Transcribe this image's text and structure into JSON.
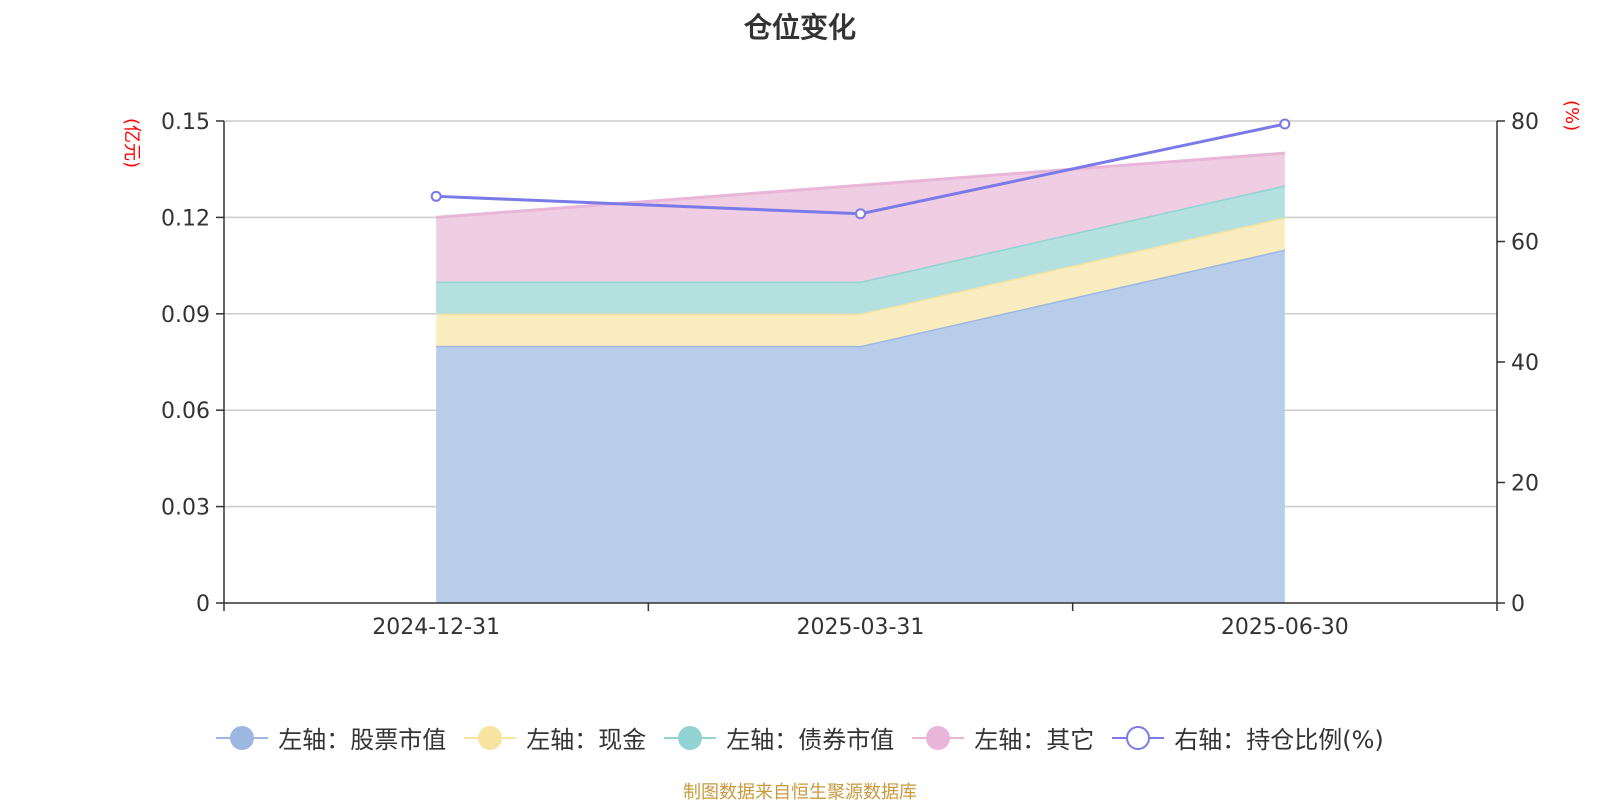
{
  "title": "仓位变化",
  "left_unit": "(亿元)",
  "right_unit": "(%)",
  "source": "制图数据来自恒生聚源数据库",
  "legend": [
    {
      "label": "左轴：股票市值",
      "color": "#9db8e0",
      "hollow": false
    },
    {
      "label": "左轴：现金",
      "color": "#f6e4a0",
      "hollow": false
    },
    {
      "label": "左轴：债券市值",
      "color": "#92d3d3",
      "hollow": false
    },
    {
      "label": "左轴：其它",
      "color": "#e9b5d8",
      "hollow": false
    },
    {
      "label": "右轴：持仓比例(%)",
      "color": "#7a7ae8",
      "hollow": true
    }
  ],
  "chart_data": {
    "type": "area",
    "stacked": true,
    "categories": [
      "2024-12-31",
      "2025-03-31",
      "2025-06-30"
    ],
    "left_axis": {
      "min": 0,
      "max": 0.15,
      "ticks": [
        "0",
        "0.03",
        "0.06",
        "0.09",
        "0.12",
        "0.15"
      ]
    },
    "right_axis": {
      "min": 0,
      "max": 80,
      "ticks": [
        "0",
        "20",
        "40",
        "60",
        "80"
      ]
    },
    "grid": true,
    "legend_position": "bottom",
    "series": [
      {
        "name": "左轴：股票市值",
        "axis": "left",
        "values": [
          0.08,
          0.08,
          0.11
        ],
        "color": "#9db8e0",
        "fill": "#b8cdea"
      },
      {
        "name": "左轴：现金",
        "axis": "left",
        "values": [
          0.01,
          0.01,
          0.01
        ],
        "color": "#f6e4a0",
        "fill": "#f9edbf"
      },
      {
        "name": "左轴：债券市值",
        "axis": "left",
        "values": [
          0.01,
          0.01,
          0.01
        ],
        "color": "#92d3d3",
        "fill": "#b5e0e0"
      },
      {
        "name": "左轴：其它",
        "axis": "left",
        "values": [
          0.02,
          0.03,
          0.01
        ],
        "color": "#e9b5d8",
        "fill": "#efcde2"
      },
      {
        "name": "右轴：持仓比例(%)",
        "axis": "right",
        "type": "line",
        "values": [
          67.5,
          64.6,
          79.5
        ],
        "color": "#7a7ae8"
      }
    ]
  }
}
